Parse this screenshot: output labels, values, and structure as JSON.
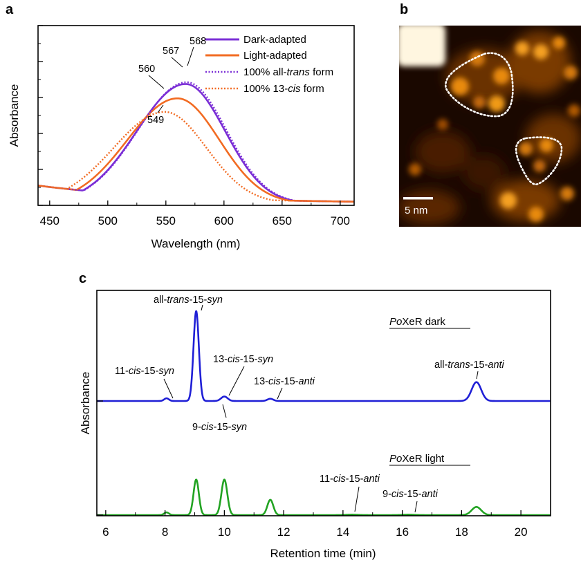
{
  "panels": {
    "a": "a",
    "b": "b",
    "c": "c"
  },
  "chart_data": [
    {
      "type": "line",
      "panel": "a",
      "xlabel": "Wavelength (nm)",
      "ylabel": "Absorbance",
      "xlim": [
        440,
        712
      ],
      "ylim": [
        0,
        1.0
      ],
      "xticks": [
        450,
        500,
        550,
        600,
        650,
        700
      ],
      "series": [
        {
          "name": "Dark-adapted",
          "style": "solid",
          "color": "#7b2fd6",
          "peak": 567,
          "height": 0.665,
          "sigmaL": 42,
          "sigmaR": 34
        },
        {
          "name": "Light-adapted",
          "style": "solid",
          "color": "#f26b22",
          "peak": 560,
          "height": 0.585,
          "sigmaL": 43,
          "sigmaR": 36
        },
        {
          "name": "100% all-trans form",
          "style": "dotted",
          "color": "#7b2fd6",
          "peak": 568,
          "height": 0.675,
          "sigmaL": 42,
          "sigmaR": 34
        },
        {
          "name": "100% 13-cis form",
          "style": "dotted",
          "color": "#f26b22",
          "peak": 549,
          "height": 0.51,
          "sigmaL": 44,
          "sigmaR": 36
        }
      ],
      "legend": [
        {
          "prefix": "Dark-adapted",
          "italic": "",
          "suffix": "",
          "style": "solid",
          "color": "#7b2fd6"
        },
        {
          "prefix": "Light-adapted",
          "italic": "",
          "suffix": "",
          "style": "solid",
          "color": "#f26b22"
        },
        {
          "prefix": "100% all-",
          "italic": "trans",
          "suffix": " form",
          "style": "dotted",
          "color": "#7b2fd6"
        },
        {
          "prefix": "100% 13-",
          "italic": "cis",
          "suffix": " form",
          "style": "dotted",
          "color": "#f26b22"
        }
      ],
      "peak_labels": [
        "568",
        "567",
        "560",
        "549"
      ],
      "legend_placement": "top-right"
    },
    {
      "type": "line",
      "panel": "c",
      "xlabel": "Retention time (min)",
      "ylabel": "Absorbance",
      "xlim": [
        5.7,
        21.0
      ],
      "xticks": [
        6,
        8,
        10,
        12,
        14,
        16,
        18,
        20
      ],
      "series": [
        {
          "name": "PoXeR dark",
          "color": "#1f1fd6",
          "peaks": [
            {
              "t": 8.05,
              "h": 0.03,
              "w": 0.08
            },
            {
              "t": 9.05,
              "h": 1.0,
              "w": 0.09
            },
            {
              "t": 10.0,
              "h": 0.05,
              "w": 0.11
            },
            {
              "t": 11.55,
              "h": 0.025,
              "w": 0.1
            },
            {
              "t": 18.5,
              "h": 0.21,
              "w": 0.16
            }
          ]
        },
        {
          "name": "PoXeR light",
          "color": "#22a322",
          "peaks": [
            {
              "t": 8.05,
              "h": 0.03,
              "w": 0.08
            },
            {
              "t": 9.05,
              "h": 0.395,
              "w": 0.09
            },
            {
              "t": 10.0,
              "h": 0.395,
              "w": 0.1
            },
            {
              "t": 11.55,
              "h": 0.17,
              "w": 0.1
            },
            {
              "t": 14.3,
              "h": 0.005,
              "w": 0.2
            },
            {
              "t": 16.2,
              "h": 0.005,
              "w": 0.2
            },
            {
              "t": 18.5,
              "h": 0.09,
              "w": 0.16
            }
          ]
        }
      ],
      "trace_labels": [
        {
          "prefix": "Po",
          "suffix": "XeR dark"
        },
        {
          "prefix": "Po",
          "suffix": "XeR light"
        }
      ],
      "peak_annotations": [
        {
          "parts": [
            "all-",
            "trans",
            "-15-",
            "syn"
          ]
        },
        {
          "parts": [
            "11-",
            "cis",
            "-15-",
            "syn"
          ]
        },
        {
          "parts": [
            "13-",
            "cis",
            "-15-",
            "syn"
          ]
        },
        {
          "parts": [
            "13-",
            "cis",
            "-15-",
            "anti"
          ]
        },
        {
          "parts": [
            "9-",
            "cis",
            "-15-",
            "syn"
          ]
        },
        {
          "parts": [
            "all-",
            "trans",
            "-15-",
            "anti"
          ]
        },
        {
          "parts": [
            "11-",
            "cis",
            "-15-",
            "anti"
          ]
        },
        {
          "parts": [
            "9-",
            "cis",
            "-15-",
            "anti"
          ]
        }
      ]
    }
  ],
  "afm_image": {
    "panel": "b",
    "scale_bar_label": "5 nm",
    "colors": {
      "dark": "#1a0800",
      "mid": "#7a3a00",
      "bright": "#f5a020",
      "saturated": "#fff6e0"
    },
    "outline_color": "#ffffff"
  }
}
